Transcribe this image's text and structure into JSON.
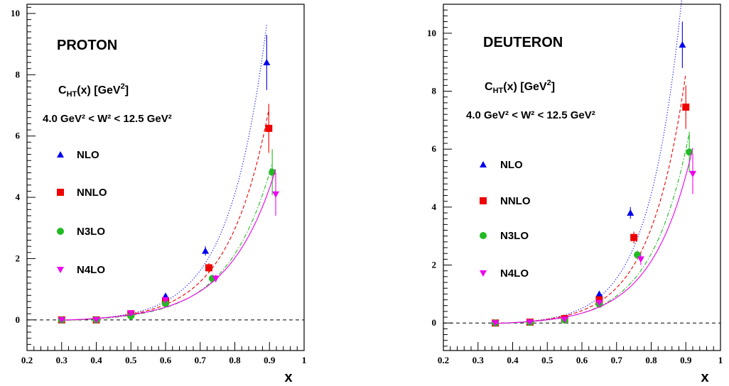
{
  "chart_data": [
    {
      "type": "scatter",
      "panel_title": "PROTON",
      "annotation_quantity": {
        "main": "C",
        "sub": "HT",
        "rest": "(x) [GeV",
        "sup": "2",
        "close": "]"
      },
      "annotation_range": "4.0 GeV² < W² < 12.5 GeV²",
      "xlabel": "x",
      "xlim": [
        0.2,
        1.0
      ],
      "ylim": [
        -1,
        10.3
      ],
      "xticks": [
        0.2,
        0.3,
        0.4,
        0.5,
        0.6,
        0.7,
        0.8,
        0.9,
        1
      ],
      "xticklabels": [
        "0.2",
        "0.3",
        "0.4",
        "0.5",
        "0.6",
        "0.7",
        "0.8",
        "0.9",
        "1"
      ],
      "yticks": [
        0,
        2,
        4,
        6,
        8,
        10
      ],
      "yticklabels": [
        "0",
        "2",
        "4",
        "6",
        "8",
        "10"
      ],
      "reference_line_y": 0,
      "legend_position": "left",
      "series": [
        {
          "name": "NLO",
          "color": "#0000ee",
          "marker": "triangle-up",
          "line": "dotted",
          "x": [
            0.3,
            0.4,
            0.5,
            0.6,
            0.715,
            0.892
          ],
          "y": [
            0.0,
            0.0,
            0.2,
            0.78,
            2.25,
            8.4
          ],
          "err": [
            0.05,
            0.05,
            0.05,
            0.08,
            0.15,
            0.9
          ]
        },
        {
          "name": "NNLO",
          "color": "#ee0000",
          "marker": "square",
          "line": "dashed",
          "x": [
            0.3,
            0.4,
            0.5,
            0.6,
            0.725,
            0.898
          ],
          "y": [
            0.0,
            0.0,
            0.2,
            0.62,
            1.7,
            6.25
          ],
          "err": [
            0.05,
            0.05,
            0.05,
            0.07,
            0.15,
            0.8
          ]
        },
        {
          "name": "N3LO",
          "color": "#22bb22",
          "marker": "circle",
          "line": "dash-dot",
          "x": [
            0.3,
            0.4,
            0.5,
            0.6,
            0.735,
            0.908
          ],
          "y": [
            0.0,
            0.0,
            0.13,
            0.53,
            1.35,
            4.82
          ],
          "err": [
            0.05,
            0.05,
            0.05,
            0.06,
            0.12,
            0.75
          ]
        },
        {
          "name": "N4LO",
          "color": "#ee00ee",
          "marker": "triangle-down",
          "line": "solid",
          "x": [
            0.3,
            0.4,
            0.5,
            0.6,
            0.745,
            0.918
          ],
          "y": [
            0.0,
            0.0,
            0.22,
            0.65,
            1.35,
            4.1
          ],
          "err": [
            0.05,
            0.05,
            0.05,
            0.06,
            0.12,
            0.7
          ]
        }
      ]
    },
    {
      "type": "scatter",
      "panel_title": "DEUTERON",
      "annotation_quantity": {
        "main": "C",
        "sub": "HT",
        "rest": "(x) [GeV",
        "sup": "2",
        "close": "]"
      },
      "annotation_range": "4.0 GeV² < W² < 12.5 GeV²",
      "xlabel": "x",
      "xlim": [
        0.2,
        1.0
      ],
      "ylim": [
        -0.95,
        11.0
      ],
      "xticks": [
        0.2,
        0.3,
        0.4,
        0.5,
        0.6,
        0.7,
        0.8,
        0.9,
        1
      ],
      "xticklabels": [
        "0.2",
        "0.3",
        "0.4",
        "0.5",
        "0.6",
        "0.7",
        "0.8",
        "0.9",
        "1"
      ],
      "yticks": [
        0,
        2,
        4,
        6,
        8,
        10
      ],
      "yticklabels": [
        "0",
        "2",
        "4",
        "6",
        "8",
        "10"
      ],
      "reference_line_y": 0,
      "legend_position": "left",
      "series": [
        {
          "name": "NLO",
          "color": "#0000ee",
          "marker": "triangle-up",
          "line": "dotted",
          "x": [
            0.35,
            0.45,
            0.55,
            0.65,
            0.74,
            0.89
          ],
          "y": [
            0.0,
            0.03,
            0.15,
            1.0,
            3.8,
            9.6
          ],
          "err": [
            0.05,
            0.05,
            0.05,
            0.1,
            0.2,
            0.8
          ]
        },
        {
          "name": "NNLO",
          "color": "#ee0000",
          "marker": "square",
          "line": "dashed",
          "x": [
            0.35,
            0.45,
            0.55,
            0.65,
            0.75,
            0.9
          ],
          "y": [
            0.0,
            0.03,
            0.15,
            0.8,
            2.95,
            7.45
          ],
          "err": [
            0.05,
            0.05,
            0.05,
            0.1,
            0.2,
            0.75
          ]
        },
        {
          "name": "N3LO",
          "color": "#22bb22",
          "marker": "circle",
          "line": "dash-dot",
          "x": [
            0.35,
            0.45,
            0.55,
            0.65,
            0.76,
            0.91
          ],
          "y": [
            0.0,
            0.02,
            0.1,
            0.65,
            2.35,
            5.9
          ],
          "err": [
            0.05,
            0.05,
            0.05,
            0.1,
            0.15,
            0.7
          ]
        },
        {
          "name": "N4LO",
          "color": "#ee00ee",
          "marker": "triangle-down",
          "line": "solid",
          "x": [
            0.35,
            0.45,
            0.55,
            0.65,
            0.77,
            0.92
          ],
          "y": [
            0.0,
            0.03,
            0.12,
            0.7,
            2.2,
            5.15
          ],
          "err": [
            0.05,
            0.05,
            0.05,
            0.1,
            0.2,
            0.7
          ]
        }
      ]
    }
  ]
}
